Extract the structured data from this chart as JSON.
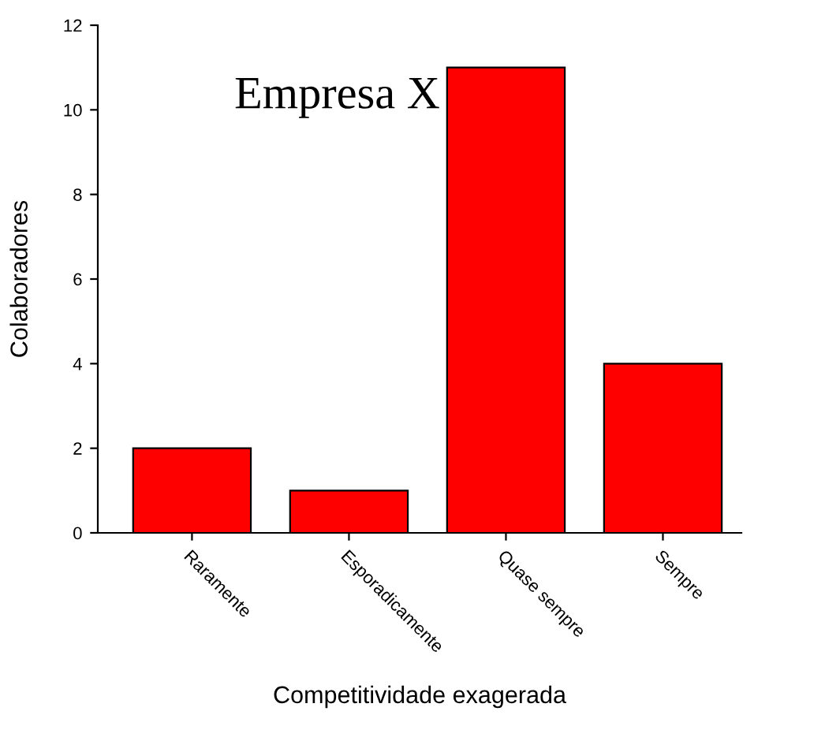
{
  "chart_data": {
    "type": "bar",
    "title": "Empresa X",
    "xlabel": "Competitividade exagerada",
    "ylabel": "Colaboradores",
    "categories": [
      "Raramente",
      "Esporadicamente",
      "Quase sempre",
      "Sempre"
    ],
    "values": [
      2,
      1,
      11,
      4
    ],
    "color": "#ff0000",
    "ylim": [
      0,
      12
    ],
    "yticks": [
      0,
      2,
      4,
      6,
      8,
      10,
      12
    ],
    "grid": false,
    "legend": false
  }
}
